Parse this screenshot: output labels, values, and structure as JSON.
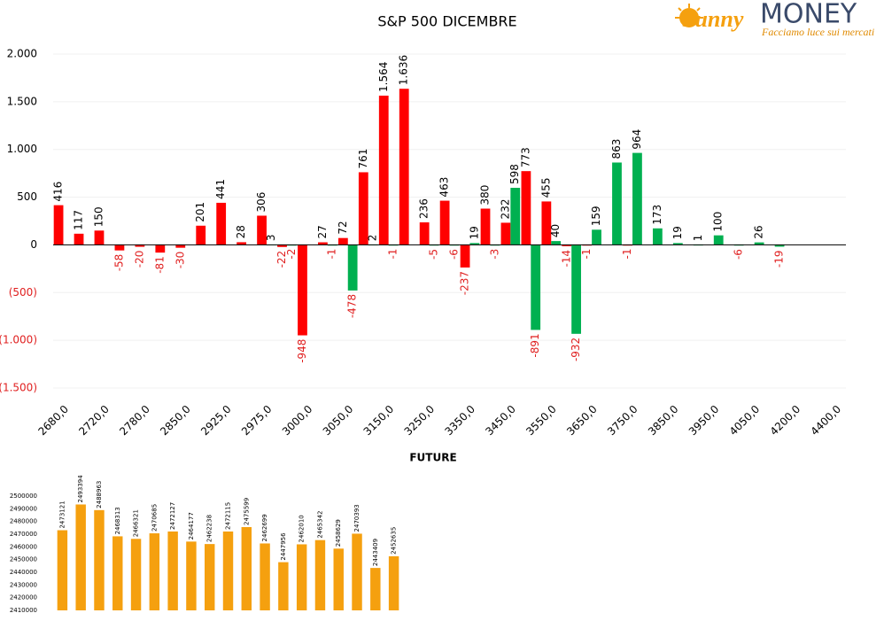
{
  "logo": {
    "brand": "Sunny",
    "name": "MONEY",
    "tagline": "Facciamo luce sui mercati"
  },
  "chart_data": [
    {
      "type": "grouped_bar",
      "title": "S&P 500 DICEMBRE",
      "categories": [
        "2680,0",
        null,
        "2720,0",
        null,
        "2780,0",
        null,
        "2850,0",
        null,
        "2925,0",
        null,
        "2975,0",
        null,
        "3000,0",
        null,
        "3050,0",
        null,
        "3150,0",
        null,
        "3250,0",
        null,
        "3350,0",
        null,
        "3450,0",
        null,
        "3550,0",
        null,
        "3650,0",
        null,
        "3750,0",
        null,
        "3850,0",
        null,
        "3950,0",
        null,
        "4050,0",
        null,
        "4200,0",
        null,
        "4400,0"
      ],
      "series": [
        {
          "color": "#ff0000",
          "values": [
            416,
            117,
            150,
            -58,
            -20,
            -81,
            -30,
            201,
            441,
            28,
            306,
            -22,
            -948,
            27,
            72,
            761,
            1564,
            1636,
            236,
            463,
            -237,
            380,
            232,
            773,
            455,
            -14,
            -1,
            null,
            -1,
            null,
            null,
            null,
            null,
            null,
            null,
            null,
            null,
            null,
            null
          ],
          "value_labels": [
            "416",
            "117",
            "150",
            "-58",
            "-20",
            "-81",
            "-30",
            "201",
            "441",
            "28",
            "306",
            "-22",
            "-948",
            "27",
            "72",
            "761",
            "1.564",
            "1.636",
            "236",
            "463",
            "-237",
            "380",
            "232",
            "773",
            "455",
            "-14",
            "-1",
            null,
            "-1",
            null,
            null,
            null,
            null,
            null,
            null,
            null,
            null,
            null,
            null
          ]
        },
        {
          "color": "#00b050",
          "values": [
            null,
            null,
            null,
            null,
            null,
            null,
            null,
            null,
            null,
            null,
            3,
            -2,
            null,
            -1,
            -478,
            2,
            -1,
            null,
            -5,
            -6,
            19,
            -3,
            598,
            -891,
            40,
            -932,
            159,
            863,
            964,
            173,
            19,
            1,
            100,
            -6,
            26,
            -19,
            null,
            null,
            null
          ],
          "value_labels": [
            null,
            null,
            null,
            null,
            null,
            null,
            null,
            null,
            null,
            null,
            "3",
            "-2",
            null,
            "-1",
            "-478",
            "2",
            "-1",
            null,
            "-5",
            "-6",
            "19",
            "-3",
            "598",
            "-891",
            "40",
            "-932",
            "159",
            "863",
            "964",
            "173",
            "19",
            "1",
            "100",
            "-6",
            "26",
            "-19",
            null,
            null,
            null
          ]
        }
      ],
      "ylim": [
        -1500,
        2000
      ],
      "yticks": [
        {
          "value": -1500,
          "label": "(1.500)"
        },
        {
          "value": -1000,
          "label": "(1.000)"
        },
        {
          "value": -500,
          "label": "(500)"
        },
        0,
        500,
        {
          "value": 1000,
          "label": "1.000"
        },
        {
          "value": 1500,
          "label": "1.500"
        },
        {
          "value": 2000,
          "label": "2.000"
        }
      ],
      "grid": true,
      "negative_color": "#e02020"
    },
    {
      "type": "bar",
      "title": "FUTURE",
      "color": "#f5a00f",
      "values": [
        2473121,
        2493394,
        2488963,
        2468313,
        2466321,
        2470685,
        2472127,
        2464177,
        2462238,
        2472115,
        2475599,
        2462699,
        2447956,
        2462010,
        2465342,
        2458629,
        2470393,
        2443409,
        2452635
      ],
      "ylim": [
        2410000,
        2500000
      ],
      "yticks": [
        2410000,
        2420000,
        2430000,
        2440000,
        2450000,
        2460000,
        2470000,
        2480000,
        2490000,
        2500000
      ],
      "grid": false
    }
  ]
}
